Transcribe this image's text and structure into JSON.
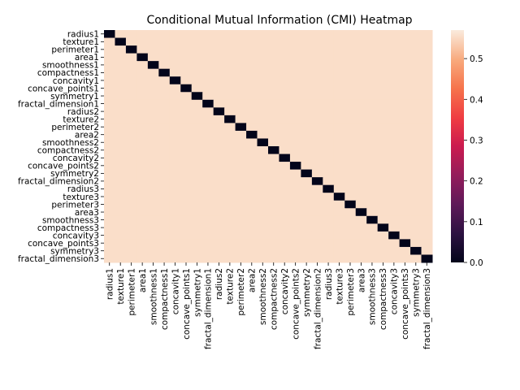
{
  "chart_data": {
    "type": "heatmap",
    "title": "Conditional Mutual Information (CMI) Heatmap",
    "xlabel": "",
    "ylabel": "",
    "labels": [
      "radius1",
      "texture1",
      "perimeter1",
      "area1",
      "smoothness1",
      "compactness1",
      "concavity1",
      "concave_points1",
      "symmetry1",
      "fractal_dimension1",
      "radius2",
      "texture2",
      "perimeter2",
      "area2",
      "smoothness2",
      "compactness2",
      "concavity2",
      "concave_points2",
      "symmetry2",
      "fractal_dimension2",
      "radius3",
      "texture3",
      "perimeter3",
      "area3",
      "smoothness3",
      "compactness3",
      "concavity3",
      "concave_points3",
      "symmetry3",
      "fractal_dimension3"
    ],
    "diagonal_value": 0.0,
    "off_diagonal_value_typical": 0.555,
    "value_range": [
      0,
      0.57
    ],
    "colorbar": {
      "ticks": [
        0.0,
        0.1,
        0.2,
        0.3,
        0.4,
        0.5
      ],
      "tick_labels": [
        "0.0",
        "0.1",
        "0.2",
        "0.3",
        "0.4",
        "0.5"
      ],
      "colormap": "rocket",
      "placement": "right"
    },
    "colors": {
      "low": "#03051a",
      "high": "#faebdd"
    }
  }
}
